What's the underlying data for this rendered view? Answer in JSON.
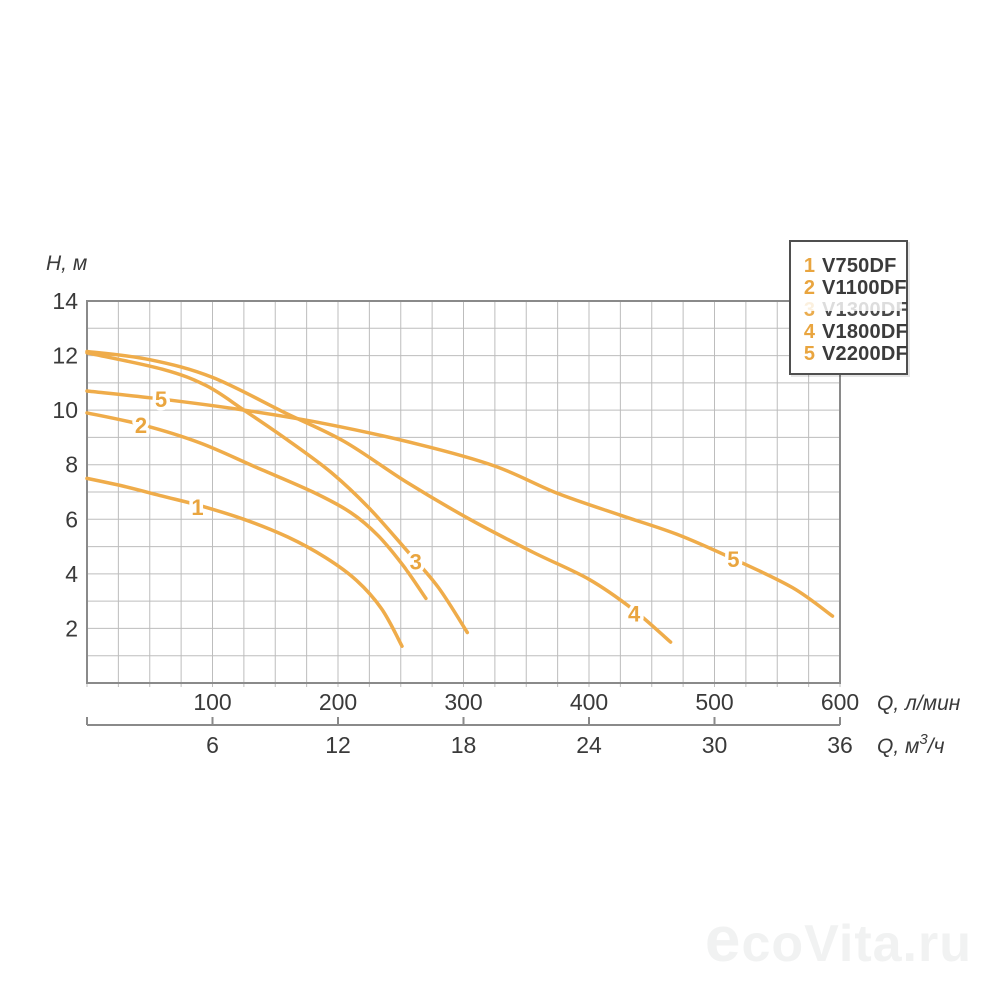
{
  "colors": {
    "curve": "#efac4a",
    "curve_label": "#e9a53f",
    "grid": "#bdbdbd",
    "plot_border": "#8a8a8a",
    "text": "#3a3a3a"
  },
  "watermark": "ecoVita.ru",
  "legend": {
    "items": [
      {
        "num": "1",
        "label": "V750DF",
        "degraded": false
      },
      {
        "num": "2",
        "label": "V1100DF",
        "degraded": false
      },
      {
        "num": "3",
        "label": "V1300DF",
        "degraded": true
      },
      {
        "num": "4",
        "label": "V1800DF",
        "degraded": false
      },
      {
        "num": "5",
        "label": "V2200DF",
        "degraded": false
      }
    ]
  },
  "chart_data": {
    "type": "line",
    "title": "",
    "ylabel": "H, м",
    "xlabel_primary": "Q, л/мин",
    "xlabel_secondary_prefix": "Q, м",
    "xlabel_secondary_sup": "3",
    "xlabel_secondary_suffix": "/ч",
    "x_range_lmin": [
      0,
      600
    ],
    "y_range_m": [
      0,
      14
    ],
    "grid": true,
    "grid_step_x_lmin": 25,
    "grid_step_y_m": 1,
    "legend_position": "top-right",
    "y_ticks": [
      14,
      12,
      10,
      8,
      6,
      4,
      2
    ],
    "x_ticks_lmin": [
      100,
      200,
      300,
      400,
      500,
      600
    ],
    "x_ticks_m3h": [
      6,
      12,
      18,
      24,
      30,
      36
    ],
    "series": [
      {
        "id": "1",
        "name": "V750DF",
        "points": [
          [
            0,
            7.5
          ],
          [
            30,
            7.2
          ],
          [
            60,
            6.85
          ],
          [
            90,
            6.5
          ],
          [
            125,
            6.0
          ],
          [
            160,
            5.35
          ],
          [
            190,
            4.6
          ],
          [
            215,
            3.75
          ],
          [
            235,
            2.7
          ],
          [
            251,
            1.35
          ]
        ],
        "label_points": [
          {
            "q": 88,
            "h": 6.45
          }
        ]
      },
      {
        "id": "2",
        "name": "V1100DF",
        "points": [
          [
            0,
            9.9
          ],
          [
            45,
            9.45
          ],
          [
            90,
            8.8
          ],
          [
            135,
            7.9
          ],
          [
            180,
            7.0
          ],
          [
            210,
            6.25
          ],
          [
            232,
            5.4
          ],
          [
            252,
            4.3
          ],
          [
            270,
            3.1
          ]
        ],
        "label_points": [
          {
            "q": 43,
            "h": 9.45
          }
        ]
      },
      {
        "id": "3",
        "name": "V1300DF",
        "points": [
          [
            0,
            12.1
          ],
          [
            60,
            11.5
          ],
          [
            95,
            10.9
          ],
          [
            125,
            10.0
          ],
          [
            160,
            8.9
          ],
          [
            195,
            7.7
          ],
          [
            225,
            6.4
          ],
          [
            255,
            4.85
          ],
          [
            280,
            3.5
          ],
          [
            303,
            1.85
          ]
        ],
        "label_points": [
          {
            "q": 262,
            "h": 4.45
          }
        ]
      },
      {
        "id": "4",
        "name": "V1800DF",
        "points": [
          [
            0,
            12.15
          ],
          [
            50,
            11.85
          ],
          [
            100,
            11.2
          ],
          [
            158,
            9.9
          ],
          [
            205,
            8.85
          ],
          [
            255,
            7.35
          ],
          [
            305,
            6.0
          ],
          [
            355,
            4.8
          ],
          [
            400,
            3.8
          ],
          [
            435,
            2.7
          ],
          [
            465,
            1.5
          ]
        ],
        "label_points": [
          {
            "q": 436,
            "h": 2.55
          }
        ]
      },
      {
        "id": "5",
        "name": "V2200DF",
        "points": [
          [
            0,
            10.7
          ],
          [
            60,
            10.4
          ],
          [
            125,
            10.0
          ],
          [
            190,
            9.5
          ],
          [
            264,
            8.75
          ],
          [
            325,
            7.95
          ],
          [
            375,
            6.95
          ],
          [
            425,
            6.15
          ],
          [
            470,
            5.45
          ],
          [
            515,
            4.55
          ],
          [
            562,
            3.5
          ],
          [
            594,
            2.45
          ]
        ],
        "label_points": [
          {
            "q": 59,
            "h": 10.4
          },
          {
            "q": 515,
            "h": 4.55
          }
        ]
      }
    ]
  }
}
